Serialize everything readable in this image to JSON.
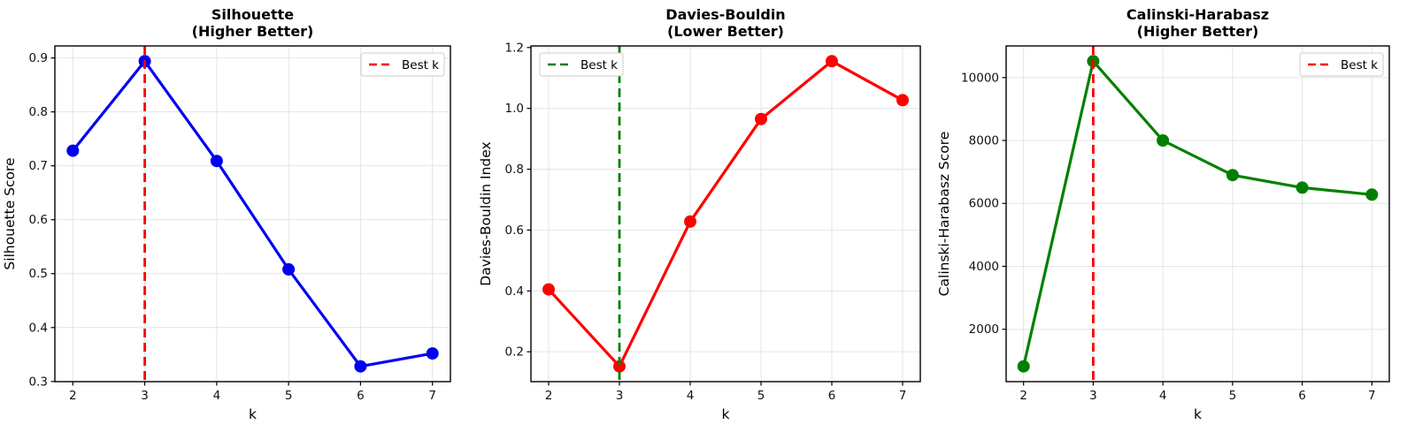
{
  "figure": {
    "background": "#ffffff",
    "grid_color": "#e4e4e4",
    "spine_color": "#000000",
    "text_color": "#111111",
    "legend_border_color": "#cccccc"
  },
  "chart_data": [
    {
      "id": "silhouette",
      "type": "line",
      "title": "Silhouette",
      "subtitle": "(Higher Better)",
      "xlabel": "k",
      "ylabel": "Silhouette Score",
      "x": [
        2,
        3,
        4,
        5,
        6,
        7
      ],
      "values": [
        0.728,
        0.894,
        0.709,
        0.508,
        0.328,
        0.352
      ],
      "color": "#0000f0",
      "best_k": 3,
      "vline_color": "#ff0000",
      "legend": {
        "label": "Best k",
        "position": "upper-right"
      },
      "xlim": [
        1.75,
        7.25
      ],
      "ylim": [
        0.2997,
        0.9223
      ],
      "xticks": [
        2,
        3,
        4,
        5,
        6,
        7
      ],
      "xtick_labels": [
        "2",
        "3",
        "4",
        "5",
        "6",
        "7"
      ],
      "yticks": [
        0.3,
        0.4,
        0.5,
        0.6,
        0.7,
        0.8,
        0.9
      ],
      "ytick_labels": [
        "0.3",
        "0.4",
        "0.5",
        "0.6",
        "0.7",
        "0.8",
        "0.9"
      ],
      "grid": true
    },
    {
      "id": "davies-bouldin",
      "type": "line",
      "title": "Davies-Bouldin",
      "subtitle": "(Lower Better)",
      "xlabel": "k",
      "ylabel": "Davies-Bouldin Index",
      "x": [
        2,
        3,
        4,
        5,
        6,
        7
      ],
      "values": [
        0.405,
        0.152,
        0.628,
        0.965,
        1.155,
        1.027
      ],
      "color": "#ff0000",
      "best_k": 3,
      "vline_color": "#008000",
      "legend": {
        "label": "Best k",
        "position": "upper-left"
      },
      "xlim": [
        1.75,
        7.25
      ],
      "ylim": [
        0.1018,
        1.2052
      ],
      "xticks": [
        2,
        3,
        4,
        5,
        6,
        7
      ],
      "xtick_labels": [
        "2",
        "3",
        "4",
        "5",
        "6",
        "7"
      ],
      "yticks": [
        0.2,
        0.4,
        0.6,
        0.8,
        1.0,
        1.2
      ],
      "ytick_labels": [
        "0.2",
        "0.4",
        "0.6",
        "0.8",
        "1.0",
        "1.2"
      ],
      "grid": true
    },
    {
      "id": "calinski-harabasz",
      "type": "line",
      "title": "Calinski-Harabasz",
      "subtitle": "(Higher Better)",
      "xlabel": "k",
      "ylabel": "Calinski-Harabasz Score",
      "x": [
        2,
        3,
        4,
        5,
        6,
        7
      ],
      "values": [
        820,
        10520,
        8000,
        6900,
        6500,
        6280
      ],
      "color": "#008000",
      "best_k": 3,
      "vline_color": "#ff0000",
      "legend": {
        "label": "Best k",
        "position": "upper-right"
      },
      "xlim": [
        1.75,
        7.25
      ],
      "ylim": [
        335,
        11005
      ],
      "xticks": [
        2,
        3,
        4,
        5,
        6,
        7
      ],
      "xtick_labels": [
        "2",
        "3",
        "4",
        "5",
        "6",
        "7"
      ],
      "yticks": [
        2000,
        4000,
        6000,
        8000,
        10000
      ],
      "ytick_labels": [
        "2000",
        "4000",
        "6000",
        "8000",
        "10000"
      ],
      "grid": true
    }
  ]
}
